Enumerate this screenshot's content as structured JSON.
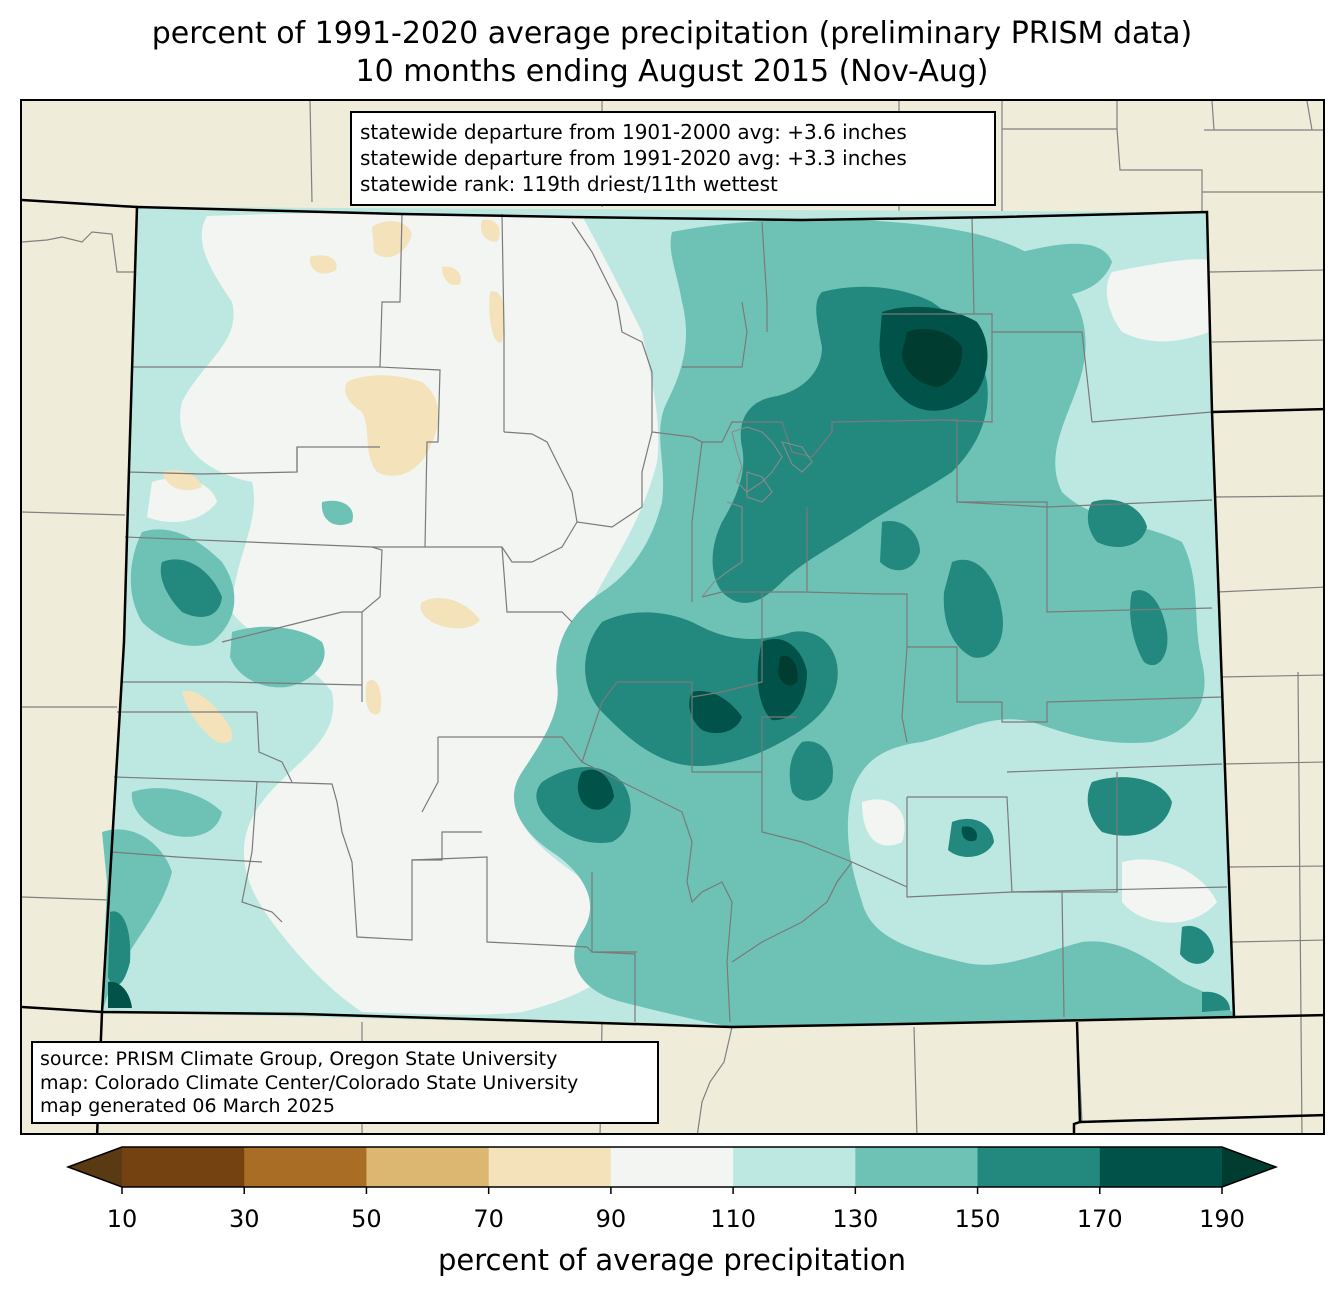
{
  "title": {
    "line1": "percent of 1991-2020 average precipitation (preliminary PRISM data)",
    "line2": "10 months ending August 2015 (Nov-Aug)"
  },
  "stats_box": {
    "line1": "statewide departure from 1901-2000 avg: +3.6 inches",
    "line2": "statewide departure from 1991-2020 avg: +3.3 inches",
    "line3": "statewide rank: 119th driest/11th wettest"
  },
  "source_box": {
    "line1": "source: PRISM Climate Group, Oregon State University",
    "line2": "map: Colorado Climate Center/Colorado State University",
    "line3": "map generated 06 March 2025"
  },
  "colorbar": {
    "label": "percent of average precipitation",
    "ticks": [
      "10",
      "30",
      "50",
      "70",
      "90",
      "110",
      "130",
      "150",
      "170",
      "190"
    ],
    "colors": [
      "#5a3a12",
      "#744210",
      "#aa6d25",
      "#dbb771",
      "#f4e2ba",
      "#f3f5f3",
      "#bce8e1",
      "#6ec2b5",
      "#23897f",
      "#01534a",
      "#003c30"
    ]
  },
  "map": {
    "background": "#efedda",
    "region": "Colorado"
  }
}
